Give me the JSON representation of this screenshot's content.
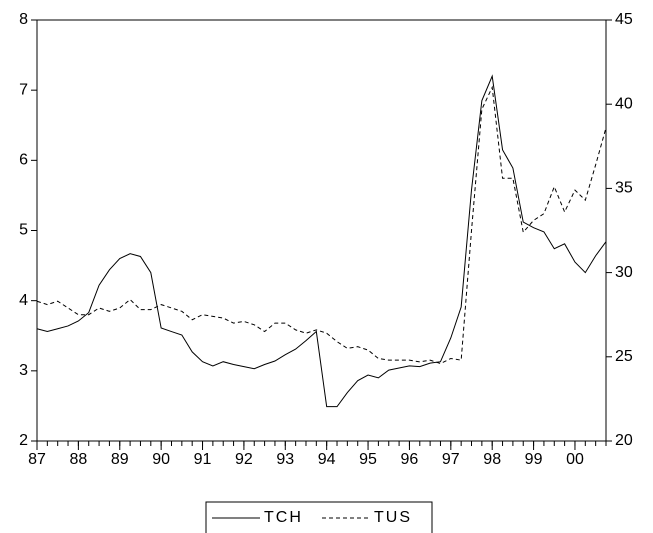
{
  "chart_data": {
    "type": "line",
    "x": [
      1987,
      1987.25,
      1987.5,
      1987.75,
      1988,
      1988.25,
      1988.5,
      1988.75,
      1989,
      1989.25,
      1989.5,
      1989.75,
      1990,
      1990.25,
      1990.5,
      1990.75,
      1991,
      1991.25,
      1991.5,
      1991.75,
      1992,
      1992.25,
      1992.5,
      1992.75,
      1993,
      1993.25,
      1993.5,
      1993.75,
      1994,
      1994.25,
      1994.5,
      1994.75,
      1995,
      1995.25,
      1995.5,
      1995.75,
      1996,
      1996.25,
      1996.5,
      1996.75,
      1997,
      1997.25,
      1997.5,
      1997.75,
      1998,
      1998.25,
      1998.5,
      1998.75,
      1999,
      1999.25,
      1999.5,
      1999.75,
      2000,
      2000.25,
      2000.5,
      2000.75
    ],
    "series": [
      {
        "name": "TCH",
        "color": "#000000",
        "line_style": "solid",
        "values": [
          3.6,
          3.56,
          3.6,
          3.64,
          3.71,
          3.83,
          4.22,
          4.44,
          4.6,
          4.67,
          4.63,
          4.4,
          3.61,
          3.56,
          3.51,
          3.27,
          3.13,
          3.07,
          3.13,
          3.09,
          3.06,
          3.03,
          3.09,
          3.14,
          3.23,
          3.31,
          3.43,
          3.56,
          2.49,
          2.49,
          2.69,
          2.86,
          2.94,
          2.9,
          3.01,
          3.04,
          3.07,
          3.06,
          3.11,
          3.13,
          3.47,
          3.91,
          5.58,
          6.85,
          7.2,
          6.15,
          5.89,
          5.12,
          5.04,
          4.98,
          4.74,
          4.81,
          4.55,
          4.4,
          4.64,
          4.84
        ]
      },
      {
        "name": "TUS",
        "color": "#000000",
        "line_style": "dashed",
        "axis": "y2",
        "values": [
          28.3,
          28.1,
          28.3,
          27.9,
          27.5,
          27.5,
          27.9,
          27.7,
          27.9,
          28.4,
          27.8,
          27.8,
          28.1,
          27.9,
          27.7,
          27.2,
          27.5,
          27.4,
          27.3,
          27.0,
          27.1,
          26.9,
          26.5,
          27.0,
          27.0,
          26.6,
          26.4,
          26.6,
          26.4,
          25.9,
          25.5,
          25.6,
          25.4,
          24.9,
          24.8,
          24.8,
          24.8,
          24.7,
          24.8,
          24.6,
          24.9,
          24.8,
          32.5,
          39.7,
          41.0,
          35.6,
          35.6,
          32.4,
          33.1,
          33.5,
          35.1,
          33.6,
          34.9,
          34.3,
          36.4,
          38.6
        ]
      }
    ],
    "xlim": [
      1987,
      2000.75
    ],
    "xticks": [
      {
        "value": 1987,
        "label": "87"
      },
      {
        "value": 1988,
        "label": "88"
      },
      {
        "value": 1989,
        "label": "89"
      },
      {
        "value": 1990,
        "label": "90"
      },
      {
        "value": 1991,
        "label": "91"
      },
      {
        "value": 1992,
        "label": "92"
      },
      {
        "value": 1993,
        "label": "93"
      },
      {
        "value": 1994,
        "label": "94"
      },
      {
        "value": 1995,
        "label": "95"
      },
      {
        "value": 1996,
        "label": "96"
      },
      {
        "value": 1997,
        "label": "97"
      },
      {
        "value": 1998,
        "label": "98"
      },
      {
        "value": 1999,
        "label": "99"
      },
      {
        "value": 2000,
        "label": "00"
      }
    ],
    "ylim": [
      2,
      8
    ],
    "yticks": [
      2,
      3,
      4,
      5,
      6,
      7,
      8
    ],
    "y2lim": [
      20,
      45
    ],
    "y2ticks": [
      20,
      25,
      30,
      35,
      40,
      45
    ],
    "legend": "bottom"
  }
}
